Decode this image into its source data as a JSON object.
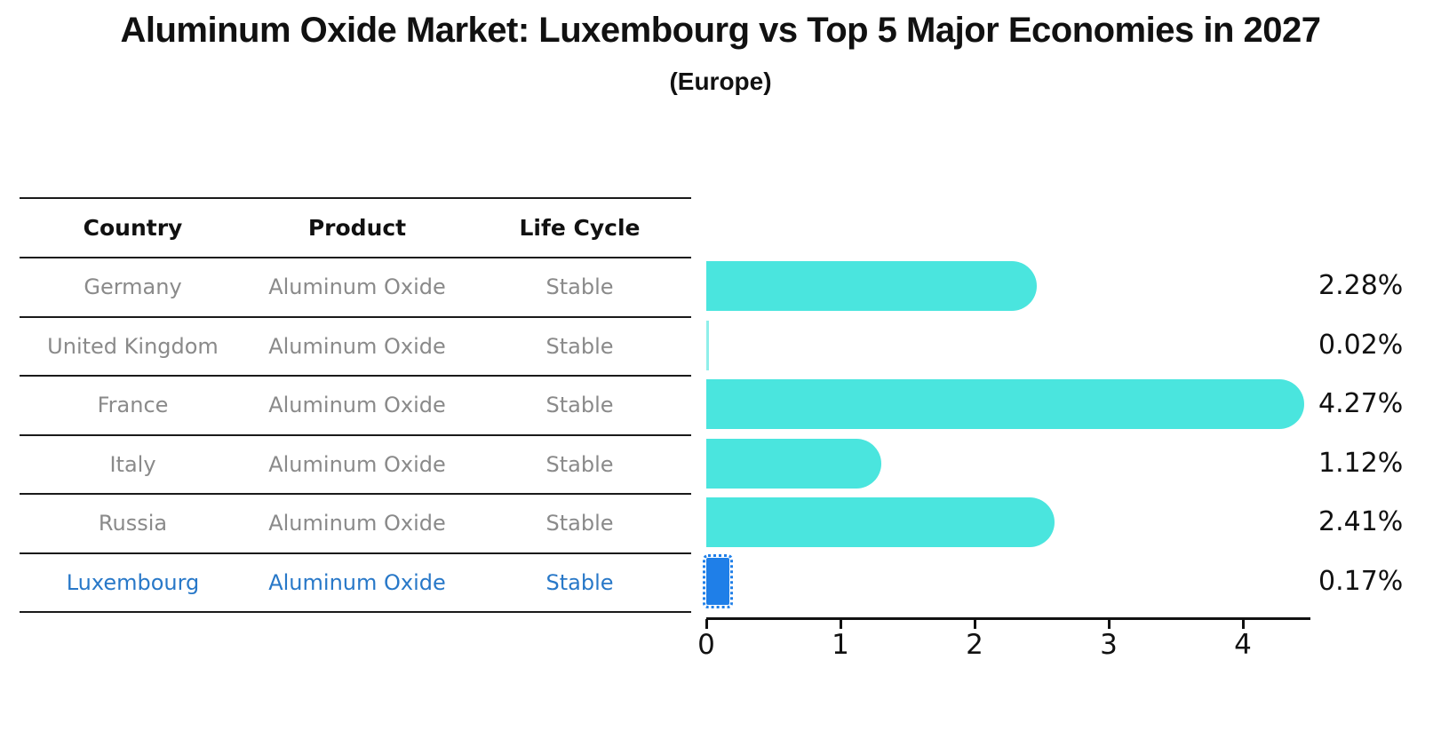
{
  "title": "Aluminum Oxide Market: Luxembourg vs Top 5 Major Economies in 2027",
  "subtitle": "(Europe)",
  "table": {
    "headers": [
      "Country",
      "Product",
      "Life Cycle"
    ],
    "rows": [
      {
        "country": "Germany",
        "product": "Aluminum Oxide",
        "life_cycle": "Stable"
      },
      {
        "country": "United Kingdom",
        "product": "Aluminum Oxide",
        "life_cycle": "Stable"
      },
      {
        "country": "France",
        "product": "Aluminum Oxide",
        "life_cycle": "Stable"
      },
      {
        "country": "Italy",
        "product": "Aluminum Oxide",
        "life_cycle": "Stable"
      },
      {
        "country": "Russia",
        "product": "Aluminum Oxide",
        "life_cycle": "Stable"
      },
      {
        "country": "Luxembourg",
        "product": "Aluminum Oxide",
        "life_cycle": "Stable"
      }
    ]
  },
  "chart_data": {
    "type": "bar",
    "orientation": "horizontal",
    "title": "Aluminum Oxide Market: Luxembourg vs Top 5 Major Economies in 2027",
    "subtitle": "(Europe)",
    "categories": [
      "Germany",
      "United Kingdom",
      "France",
      "Italy",
      "Russia",
      "Luxembourg"
    ],
    "values": [
      2.28,
      0.02,
      4.27,
      1.12,
      2.41,
      0.17
    ],
    "value_labels": [
      "2.28%",
      "0.02%",
      "4.27%",
      "1.12%",
      "2.41%",
      "0.17%"
    ],
    "xlabel": "",
    "ylabel": "",
    "xlim": [
      0,
      4.5
    ],
    "xticks": [
      "0",
      "1",
      "2",
      "3",
      "4"
    ],
    "grid": false,
    "legend": false,
    "bar_color": "#4AE5DE",
    "highlight_index": 5,
    "highlight_bar_color": "#1F7FE8",
    "highlight_text_color": "#2878C8"
  }
}
